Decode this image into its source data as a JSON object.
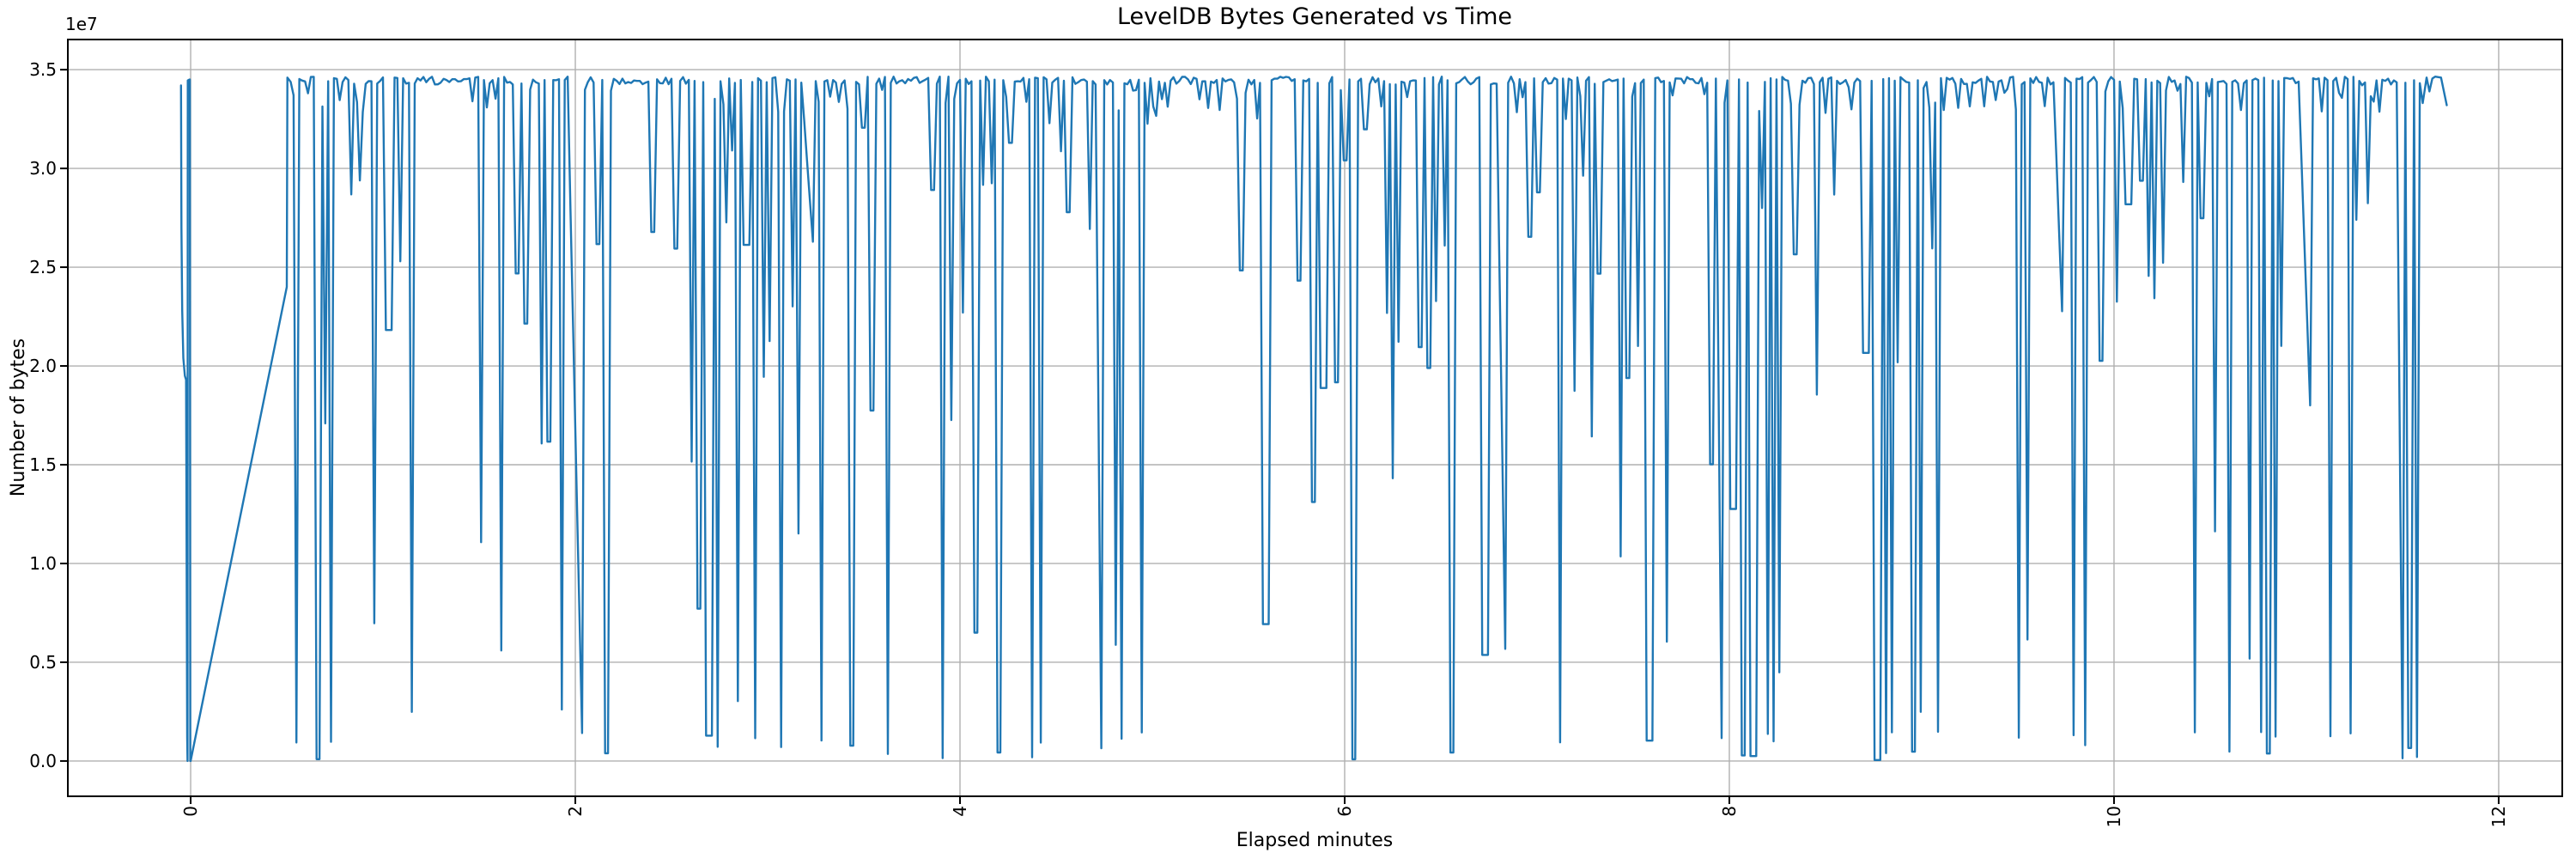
{
  "chart_data": {
    "type": "line",
    "title": "LevelDB Bytes Generated vs Time",
    "xlabel": "Elapsed minutes",
    "ylabel": "Number of bytes",
    "y_offset_label": "1e7",
    "grid": true,
    "legend": "none",
    "xlim": [
      -0.643,
      12.335
    ],
    "ylim_bytes": [
      -1830000,
      36570000
    ],
    "xticks": [
      0,
      2,
      4,
      6,
      8,
      10,
      12
    ],
    "xtick_labels": [
      "0",
      "2",
      "4",
      "6",
      "8",
      "10",
      "12"
    ],
    "xtick_label_rotation_deg": 90,
    "ytick_values_bytes": [
      0,
      5000000,
      10000000,
      15000000,
      20000000,
      25000000,
      30000000,
      35000000
    ],
    "ytick_labels": [
      "0.0",
      "0.5",
      "1.0",
      "1.5",
      "2.0",
      "2.5",
      "3.0",
      "3.5"
    ],
    "style": {
      "line_color": "#1f77b4",
      "line_width": 2.4,
      "grid_color": "#b0b0b0",
      "grid_width": 1.4,
      "spine_color": "#000000",
      "spine_width": 2,
      "tick_color": "#000000",
      "tick_length": 8,
      "tick_width": 2,
      "background": "#ffffff"
    },
    "series": {
      "name": "leveldb_bytes_generated",
      "prelude_points": [
        [
          -0.05,
          34200000
        ],
        [
          -0.048,
          27000000
        ],
        [
          -0.044,
          22800000
        ],
        [
          -0.038,
          20400000
        ],
        [
          -0.03,
          19500000
        ],
        [
          -0.024,
          19300000
        ],
        [
          -0.018,
          1200000
        ],
        [
          -0.016,
          0
        ],
        [
          -0.015,
          34450000
        ],
        [
          -0.006,
          34500000
        ],
        [
          -0.004,
          34500000
        ],
        [
          -0.002,
          0
        ],
        [
          0.0,
          0
        ]
      ],
      "ramp_points": [
        [
          0.5,
          24000000
        ],
        [
          0.503,
          34600000
        ]
      ],
      "dense_segment": {
        "t_start": 0.52,
        "t_end": 11.62,
        "dt": 0.015,
        "seed": 42,
        "ceiling": 34650000,
        "ceiling_jitter": 400000,
        "notch_prob": 0.18,
        "notch_depth": 1800000,
        "run_lengths": [
          1,
          2,
          3,
          4,
          6,
          9,
          14
        ],
        "run_weights": [
          40,
          22,
          14,
          9,
          7,
          5,
          3
        ],
        "quiet_prob": 0.02,
        "quiet_max": 26,
        "drop_lengths": [
          1,
          2,
          3
        ],
        "drop_weights": [
          62,
          28,
          10
        ],
        "slope_prob": 0.07,
        "depth_mix": [
          {
            "p": 0.28,
            "lo": 0,
            "hi": 1500000
          },
          {
            "p": 0.12,
            "lo": 1500000,
            "hi": 9000000
          },
          {
            "p": 0.18,
            "lo": 9000000,
            "hi": 19000000
          },
          {
            "p": 0.3,
            "lo": 19000000,
            "hi": 28000000
          },
          {
            "p": 0.12,
            "lo": 28000000,
            "hi": 33000000
          }
        ]
      },
      "tail_points": [
        [
          11.625,
          34600000
        ],
        [
          11.64,
          33900000
        ],
        [
          11.655,
          34550000
        ],
        [
          11.67,
          34650000
        ],
        [
          11.7,
          34600000
        ],
        [
          11.73,
          33200000
        ]
      ]
    }
  }
}
